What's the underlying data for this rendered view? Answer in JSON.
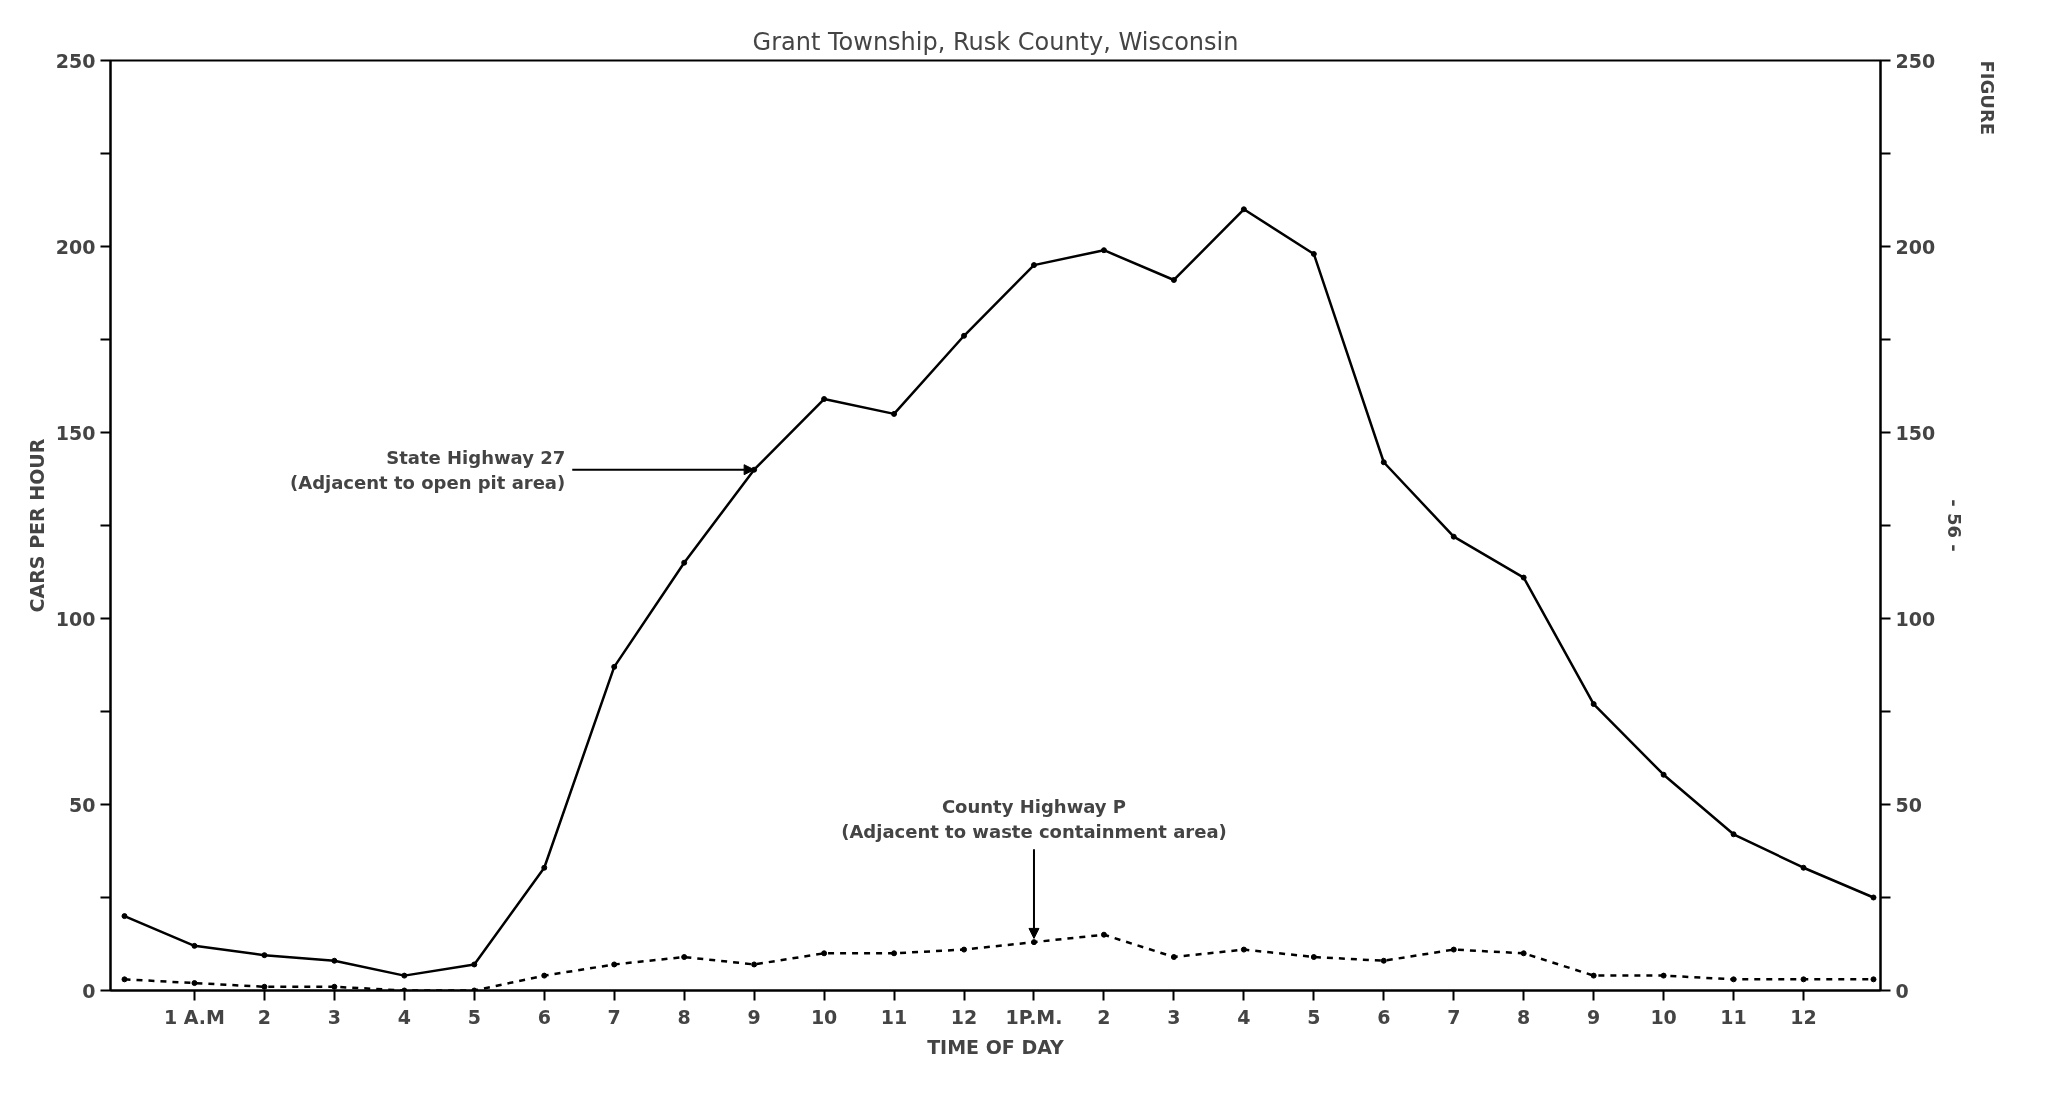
{
  "chart_data": {
    "type": "line",
    "title": "Grant Township, Rusk County, Wisconsin",
    "xlabel": "TIME OF DAY",
    "ylabel": "CARS PER HOUR",
    "categories": [
      null,
      "1 A.M",
      "2",
      "3",
      "4",
      "5",
      "6",
      "7",
      "8",
      "9",
      "10",
      "11",
      "12",
      "1P.M.",
      "2",
      "3",
      "4",
      "5",
      "6",
      "7",
      "8",
      "9",
      "10",
      "11",
      "12",
      null
    ],
    "series": [
      {
        "color": "#000000",
        "line_style": "solid",
        "values": [
          20,
          12,
          9.5,
          8,
          4,
          7,
          33,
          87,
          115,
          140,
          159,
          155,
          176,
          195,
          199,
          191,
          210,
          198,
          142,
          122,
          111,
          77,
          58,
          42,
          33,
          25
        ]
      },
      {
        "color": "#000000",
        "line_style": "dashed",
        "values": [
          3,
          2,
          1,
          1,
          0,
          0,
          4,
          7,
          9,
          7,
          10,
          10,
          11,
          13,
          15,
          9,
          11,
          9,
          8,
          11,
          10,
          4,
          4,
          3,
          3,
          3
        ]
      }
    ],
    "ylim": [
      0,
      250
    ],
    "yticks": [
      0,
      {
        "value": 25,
        "label": null
      },
      50,
      {
        "value": 75,
        "label": null
      },
      100,
      {
        "value": 125,
        "label": null
      },
      150,
      {
        "value": 175,
        "label": null
      },
      200,
      {
        "value": 225,
        "label": null
      },
      250
    ],
    "y2lim": [
      0,
      250
    ],
    "y2ticks": [
      0,
      {
        "value": 25,
        "label": null
      },
      50,
      {
        "value": 75,
        "label": null
      },
      100,
      {
        "value": 125,
        "label": null
      },
      150,
      {
        "value": 175,
        "label": null
      },
      200,
      {
        "value": 225,
        "label": null
      },
      250
    ],
    "marker": "circle",
    "grid": false,
    "annotations": [
      {
        "text": "State Highway 27\n(Adjacent to open pit area)",
        "x": "9",
        "y": 140
      },
      {
        "text": "County Highway P\n(Adjacent to waste containment area)",
        "x": "1P.M.",
        "y": 13
      },
      "- 56 -",
      "FIGURE"
    ]
  }
}
